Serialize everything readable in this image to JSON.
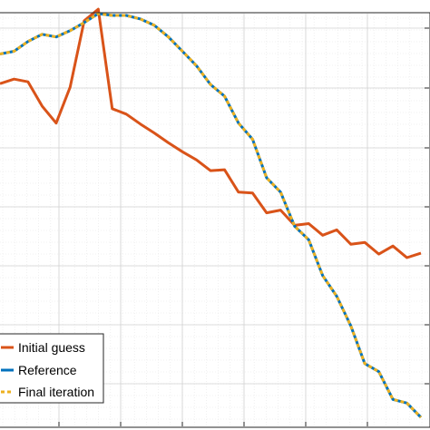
{
  "chart_data": {
    "type": "line",
    "grid": true,
    "legend_placement": "bottom-left",
    "xlim": [
      0,
      30
    ],
    "ylim": [
      0,
      460
    ],
    "x": [
      0,
      1,
      2,
      3,
      4,
      5,
      6,
      7,
      8,
      9,
      10,
      11,
      12,
      13,
      14,
      15,
      16,
      17,
      18,
      19,
      20,
      21,
      22,
      23,
      24,
      25,
      26,
      27,
      28,
      29,
      30
    ],
    "series": [
      {
        "name": "Initial guess",
        "color": "#d95319",
        "style": "solid",
        "x": [
          0,
          1,
          2,
          3,
          4,
          5,
          6,
          7,
          8,
          9,
          10,
          11,
          12,
          13,
          14,
          15,
          16,
          17,
          18,
          19,
          20,
          21,
          22,
          23,
          24,
          25,
          26,
          27,
          28,
          29,
          30
        ],
        "values": [
          382,
          387,
          384,
          357,
          338,
          378,
          452,
          465,
          354,
          348,
          337,
          327,
          316,
          306,
          297,
          285,
          286,
          261,
          260,
          238,
          241,
          224,
          226,
          213,
          219,
          203,
          205,
          192,
          201,
          188,
          193
        ]
      },
      {
        "name": "Reference",
        "color": "#0072bd",
        "style": "solid",
        "x": [
          0,
          1,
          2,
          3,
          4,
          5,
          6,
          7,
          8,
          9,
          10,
          11,
          12,
          13,
          14,
          15,
          16,
          17,
          18,
          19,
          20,
          21,
          22,
          23,
          24,
          25,
          26,
          27,
          28,
          29,
          30
        ],
        "values": [
          415,
          418,
          429,
          437,
          434,
          441,
          450,
          460,
          458,
          458,
          454,
          447,
          434,
          418,
          402,
          381,
          368,
          338,
          320,
          277,
          261,
          223,
          208,
          168,
          145,
          112,
          70,
          61,
          30,
          26,
          10
        ]
      },
      {
        "name": "Final iteration",
        "color": "#edb120",
        "style": "dashed",
        "x": [
          0,
          1,
          2,
          3,
          4,
          5,
          6,
          7,
          8,
          9,
          10,
          11,
          12,
          13,
          14,
          15,
          16,
          17,
          18,
          19,
          20,
          21,
          22,
          23,
          24,
          25,
          26,
          27,
          28,
          29,
          30
        ],
        "values": [
          415,
          418,
          429,
          437,
          434,
          441,
          450,
          460,
          458,
          458,
          454,
          447,
          434,
          418,
          402,
          381,
          368,
          338,
          320,
          277,
          261,
          223,
          208,
          168,
          145,
          112,
          70,
          61,
          30,
          26,
          10
        ]
      }
    ]
  }
}
